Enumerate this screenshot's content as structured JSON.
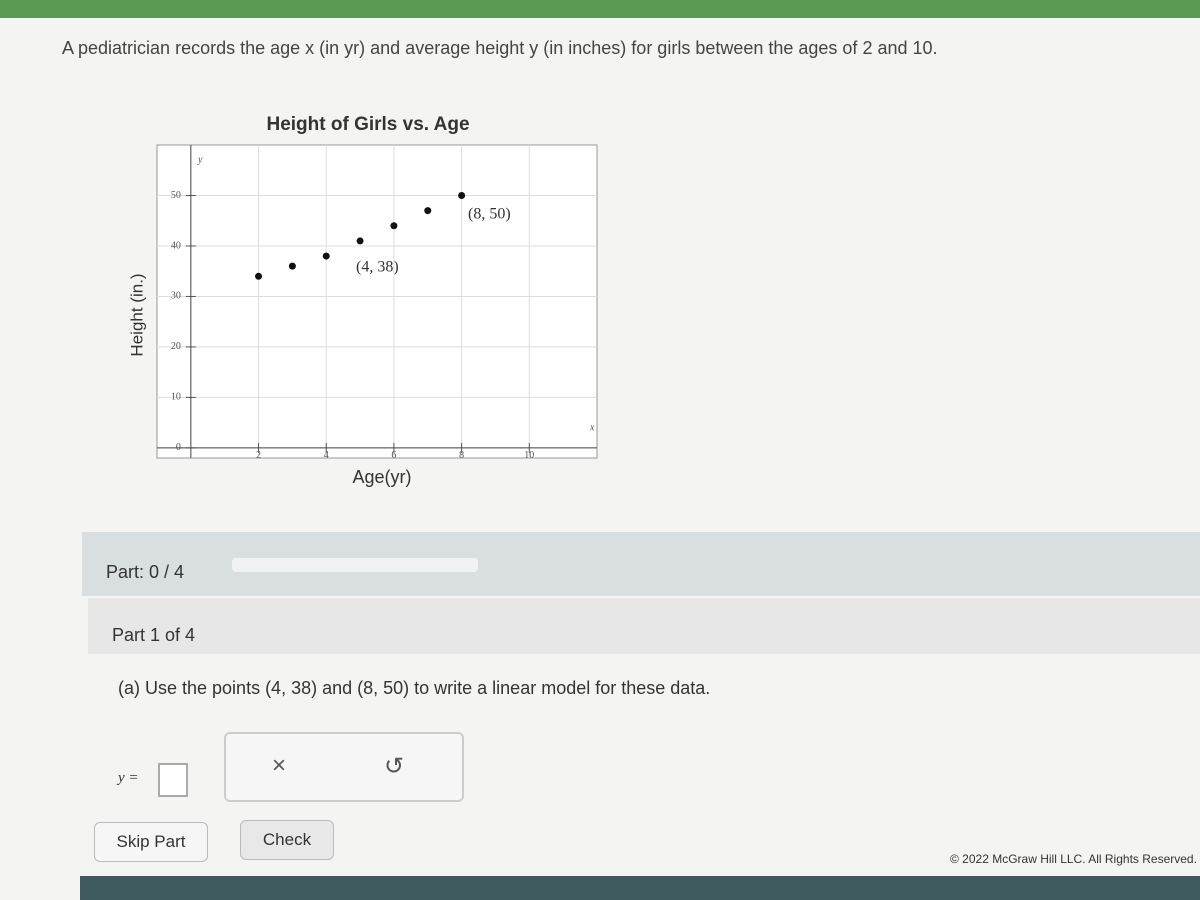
{
  "header": {
    "prompt": "A pediatrician records the age x (in yr) and average height y (in inches) for girls between the ages of 2 and 10."
  },
  "chart": {
    "type": "scatter",
    "title": "Height of Girls vs. Age",
    "x_label": "Age(yr)",
    "y_label": "Height (in.)",
    "x_axis_letter": "x",
    "y_axis_letter": "y",
    "x": [
      2,
      3,
      4,
      5,
      6,
      7,
      8
    ],
    "y": [
      34,
      36,
      38,
      41,
      44,
      47,
      50
    ],
    "color": "#111111",
    "xlim": [
      -1,
      12
    ],
    "ylim": [
      -2,
      60
    ],
    "xticks": [
      2,
      4,
      6,
      8,
      10
    ],
    "yticks": [
      0,
      10,
      20,
      30,
      40,
      50
    ],
    "grid": true,
    "annotations": [
      "(4, 38)",
      "(8, 50)"
    ]
  },
  "progress": {
    "label": "Part: 0 / 4"
  },
  "part": {
    "title": "Part 1 of 4",
    "question": "(a) Use the points (4, 38) and (8, 50) to write a linear model for these data.",
    "answer_label": "y ="
  },
  "buttons": {
    "clear": "×",
    "undo": "↺",
    "skip": "Skip Part",
    "check": "Check"
  },
  "footer": {
    "copyright": "© 2022 McGraw Hill LLC. All Rights Reserved."
  }
}
